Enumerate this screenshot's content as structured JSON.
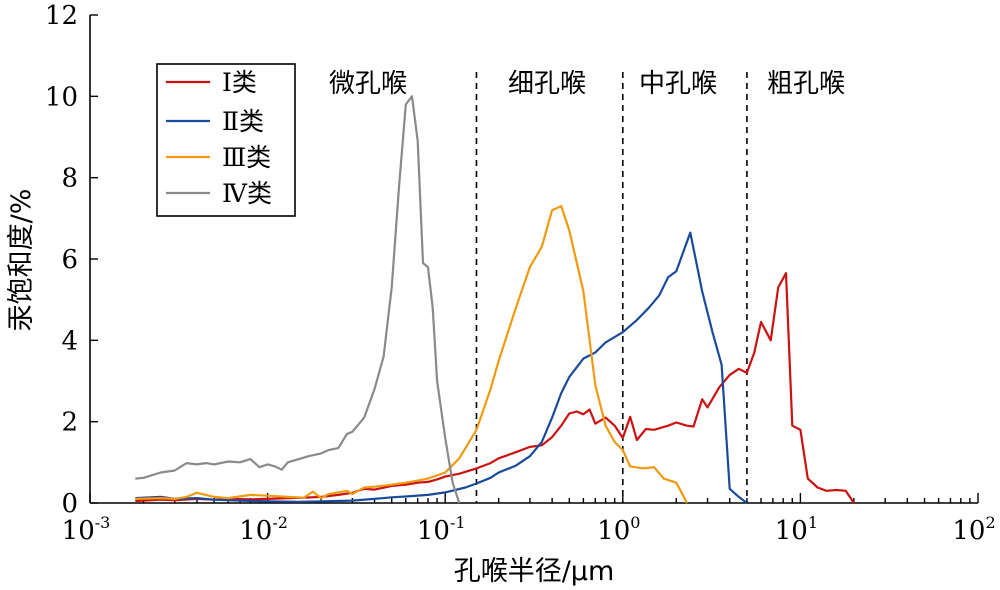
{
  "chart_data": {
    "type": "line",
    "title": "",
    "xlabel": "孔喉半径/μm",
    "ylabel": "汞饱和度/%",
    "x_scale": "log",
    "xlim": [
      0.001,
      100
    ],
    "ylim": [
      0,
      12
    ],
    "x_ticks": [
      {
        "base": "10",
        "exp": "-3",
        "value": 0.001
      },
      {
        "base": "10",
        "exp": "-2",
        "value": 0.01
      },
      {
        "base": "10",
        "exp": "-1",
        "value": 0.1
      },
      {
        "base": "10",
        "exp": "0",
        "value": 1
      },
      {
        "base": "10",
        "exp": "1",
        "value": 10
      },
      {
        "base": "10",
        "exp": "2",
        "value": 100
      }
    ],
    "y_ticks": [
      "0",
      "2",
      "4",
      "6",
      "8",
      "10",
      "12"
    ],
    "grid": false,
    "legend": "top-left",
    "regions": [
      {
        "label": "微孔喉"
      },
      {
        "label": "细孔喉"
      },
      {
        "label": "中孔喉"
      },
      {
        "label": "粗孔喉"
      }
    ],
    "dividers": [
      0.15,
      1.0,
      5.0
    ],
    "series": [
      {
        "name": "Ⅰ类",
        "color": "#cc1111",
        "points": [
          [
            0.0018,
            0.05
          ],
          [
            0.0025,
            0.08
          ],
          [
            0.003,
            0.07
          ],
          [
            0.004,
            0.1
          ],
          [
            0.005,
            0.08
          ],
          [
            0.006,
            0.1
          ],
          [
            0.008,
            0.09
          ],
          [
            0.01,
            0.1
          ],
          [
            0.013,
            0.12
          ],
          [
            0.016,
            0.13
          ],
          [
            0.02,
            0.15
          ],
          [
            0.025,
            0.2
          ],
          [
            0.03,
            0.25
          ],
          [
            0.035,
            0.35
          ],
          [
            0.04,
            0.33
          ],
          [
            0.05,
            0.42
          ],
          [
            0.06,
            0.45
          ],
          [
            0.07,
            0.5
          ],
          [
            0.08,
            0.52
          ],
          [
            0.09,
            0.58
          ],
          [
            0.1,
            0.65
          ],
          [
            0.12,
            0.72
          ],
          [
            0.15,
            0.85
          ],
          [
            0.18,
            0.98
          ],
          [
            0.2,
            1.1
          ],
          [
            0.25,
            1.25
          ],
          [
            0.3,
            1.38
          ],
          [
            0.35,
            1.42
          ],
          [
            0.4,
            1.62
          ],
          [
            0.45,
            1.9
          ],
          [
            0.5,
            2.2
          ],
          [
            0.55,
            2.25
          ],
          [
            0.6,
            2.18
          ],
          [
            0.65,
            2.3
          ],
          [
            0.7,
            1.95
          ],
          [
            0.8,
            2.1
          ],
          [
            0.9,
            1.9
          ],
          [
            1.0,
            1.6
          ],
          [
            1.1,
            2.12
          ],
          [
            1.2,
            1.55
          ],
          [
            1.35,
            1.82
          ],
          [
            1.5,
            1.8
          ],
          [
            1.8,
            1.9
          ],
          [
            2.0,
            1.98
          ],
          [
            2.3,
            1.9
          ],
          [
            2.5,
            1.88
          ],
          [
            2.8,
            2.55
          ],
          [
            3.0,
            2.35
          ],
          [
            3.5,
            2.85
          ],
          [
            4.0,
            3.15
          ],
          [
            4.5,
            3.3
          ],
          [
            5.0,
            3.2
          ],
          [
            5.5,
            3.7
          ],
          [
            6.0,
            4.45
          ],
          [
            6.8,
            4.0
          ],
          [
            7.5,
            5.3
          ],
          [
            8.3,
            5.65
          ],
          [
            9.0,
            1.9
          ],
          [
            10.0,
            1.8
          ],
          [
            11.0,
            0.6
          ],
          [
            12.5,
            0.38
          ],
          [
            14.0,
            0.3
          ],
          [
            16.0,
            0.32
          ],
          [
            18.0,
            0.3
          ],
          [
            20.0,
            0.0
          ]
        ]
      },
      {
        "name": "Ⅱ类",
        "color": "#1a4a9a",
        "points": [
          [
            0.0018,
            0.12
          ],
          [
            0.0025,
            0.15
          ],
          [
            0.003,
            0.1
          ],
          [
            0.004,
            0.12
          ],
          [
            0.005,
            0.08
          ],
          [
            0.007,
            0.06
          ],
          [
            0.01,
            0.04
          ],
          [
            0.015,
            0.03
          ],
          [
            0.02,
            0.04
          ],
          [
            0.03,
            0.06
          ],
          [
            0.04,
            0.1
          ],
          [
            0.05,
            0.14
          ],
          [
            0.06,
            0.16
          ],
          [
            0.08,
            0.2
          ],
          [
            0.1,
            0.26
          ],
          [
            0.13,
            0.38
          ],
          [
            0.15,
            0.48
          ],
          [
            0.18,
            0.62
          ],
          [
            0.2,
            0.75
          ],
          [
            0.25,
            0.92
          ],
          [
            0.3,
            1.15
          ],
          [
            0.35,
            1.5
          ],
          [
            0.4,
            2.1
          ],
          [
            0.45,
            2.7
          ],
          [
            0.5,
            3.1
          ],
          [
            0.6,
            3.55
          ],
          [
            0.7,
            3.7
          ],
          [
            0.8,
            3.95
          ],
          [
            1.0,
            4.2
          ],
          [
            1.2,
            4.5
          ],
          [
            1.4,
            4.8
          ],
          [
            1.6,
            5.1
          ],
          [
            1.8,
            5.55
          ],
          [
            2.0,
            5.7
          ],
          [
            2.4,
            6.65
          ],
          [
            2.8,
            5.2
          ],
          [
            3.2,
            4.2
          ],
          [
            3.6,
            3.4
          ],
          [
            4.0,
            0.35
          ],
          [
            4.5,
            0.15
          ],
          [
            5.0,
            0.0
          ]
        ]
      },
      {
        "name": "Ⅲ类",
        "color": "#f09a10",
        "points": [
          [
            0.0018,
            0.1
          ],
          [
            0.0025,
            0.12
          ],
          [
            0.003,
            0.1
          ],
          [
            0.0035,
            0.15
          ],
          [
            0.004,
            0.25
          ],
          [
            0.005,
            0.15
          ],
          [
            0.006,
            0.12
          ],
          [
            0.008,
            0.2
          ],
          [
            0.01,
            0.18
          ],
          [
            0.013,
            0.15
          ],
          [
            0.016,
            0.13
          ],
          [
            0.018,
            0.28
          ],
          [
            0.02,
            0.12
          ],
          [
            0.022,
            0.22
          ],
          [
            0.025,
            0.26
          ],
          [
            0.028,
            0.3
          ],
          [
            0.03,
            0.22
          ],
          [
            0.035,
            0.38
          ],
          [
            0.04,
            0.4
          ],
          [
            0.05,
            0.45
          ],
          [
            0.06,
            0.5
          ],
          [
            0.07,
            0.55
          ],
          [
            0.08,
            0.6
          ],
          [
            0.1,
            0.75
          ],
          [
            0.12,
            1.1
          ],
          [
            0.15,
            1.8
          ],
          [
            0.18,
            2.8
          ],
          [
            0.2,
            3.5
          ],
          [
            0.25,
            4.8
          ],
          [
            0.3,
            5.8
          ],
          [
            0.35,
            6.3
          ],
          [
            0.4,
            7.2
          ],
          [
            0.45,
            7.3
          ],
          [
            0.5,
            6.7
          ],
          [
            0.6,
            5.2
          ],
          [
            0.7,
            2.9
          ],
          [
            0.8,
            1.9
          ],
          [
            0.9,
            1.5
          ],
          [
            1.0,
            1.3
          ],
          [
            1.1,
            0.9
          ],
          [
            1.3,
            0.85
          ],
          [
            1.5,
            0.88
          ],
          [
            1.7,
            0.6
          ],
          [
            2.0,
            0.5
          ],
          [
            2.3,
            0.0
          ]
        ]
      },
      {
        "name": "Ⅳ类",
        "color": "#8a8a8a",
        "points": [
          [
            0.0018,
            0.6
          ],
          [
            0.002,
            0.62
          ],
          [
            0.0025,
            0.75
          ],
          [
            0.003,
            0.8
          ],
          [
            0.0035,
            0.98
          ],
          [
            0.004,
            0.95
          ],
          [
            0.0045,
            0.98
          ],
          [
            0.005,
            0.95
          ],
          [
            0.006,
            1.02
          ],
          [
            0.007,
            1.0
          ],
          [
            0.008,
            1.08
          ],
          [
            0.009,
            0.88
          ],
          [
            0.01,
            0.95
          ],
          [
            0.011,
            0.9
          ],
          [
            0.012,
            0.82
          ],
          [
            0.013,
            1.0
          ],
          [
            0.015,
            1.08
          ],
          [
            0.017,
            1.15
          ],
          [
            0.02,
            1.22
          ],
          [
            0.022,
            1.3
          ],
          [
            0.025,
            1.35
          ],
          [
            0.028,
            1.7
          ],
          [
            0.03,
            1.75
          ],
          [
            0.035,
            2.1
          ],
          [
            0.04,
            2.8
          ],
          [
            0.045,
            3.6
          ],
          [
            0.05,
            5.3
          ],
          [
            0.055,
            7.8
          ],
          [
            0.06,
            9.8
          ],
          [
            0.065,
            10.0
          ],
          [
            0.07,
            8.9
          ],
          [
            0.075,
            5.9
          ],
          [
            0.08,
            5.8
          ],
          [
            0.085,
            4.8
          ],
          [
            0.09,
            3.0
          ],
          [
            0.1,
            1.6
          ],
          [
            0.11,
            0.5
          ],
          [
            0.12,
            0.0
          ]
        ]
      }
    ]
  }
}
